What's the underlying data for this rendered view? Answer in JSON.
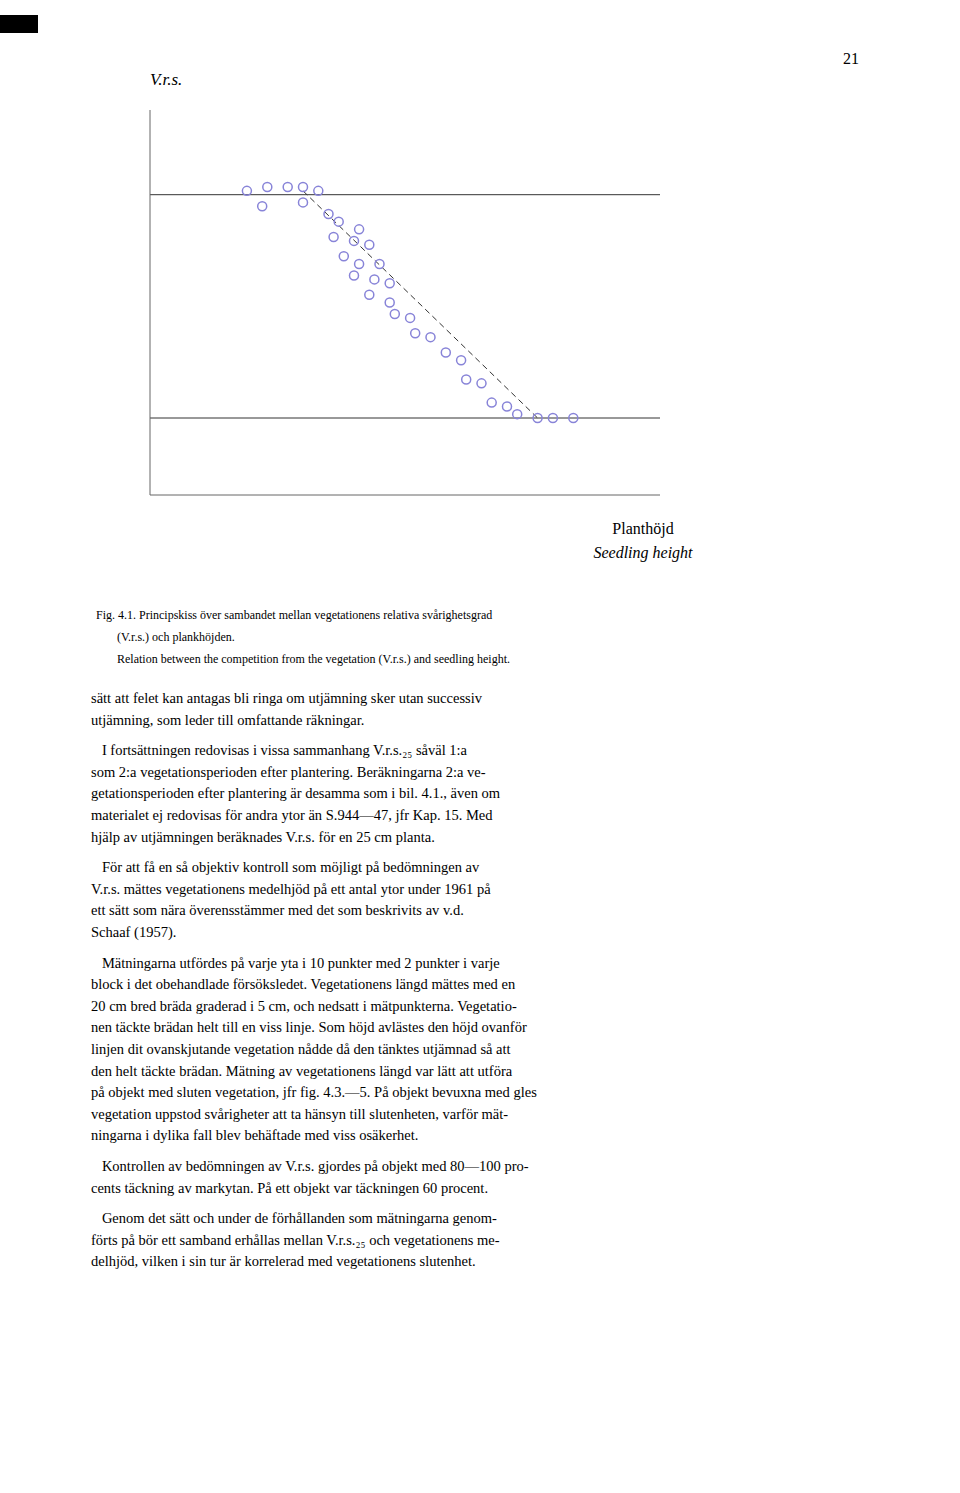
{
  "chart_data": {
    "type": "scatter",
    "ylabel": "V.r.s.",
    "xlabel": [
      "Planthöjd",
      "Seedling height"
    ],
    "x": [
      0.19,
      0.23,
      0.27,
      0.3,
      0.33,
      0.22,
      0.3,
      0.35,
      0.37,
      0.41,
      0.36,
      0.4,
      0.43,
      0.38,
      0.41,
      0.45,
      0.4,
      0.44,
      0.47,
      0.43,
      0.47,
      0.48,
      0.51,
      0.52,
      0.55,
      0.58,
      0.61,
      0.62,
      0.65,
      0.67,
      0.7,
      0.72,
      0.76,
      0.79,
      0.83
    ],
    "values": [
      0.79,
      0.8,
      0.8,
      0.8,
      0.79,
      0.75,
      0.76,
      0.73,
      0.71,
      0.69,
      0.67,
      0.66,
      0.65,
      0.62,
      0.6,
      0.6,
      0.57,
      0.56,
      0.55,
      0.52,
      0.5,
      0.47,
      0.46,
      0.42,
      0.41,
      0.37,
      0.35,
      0.3,
      0.29,
      0.24,
      0.23,
      0.21,
      0.2,
      0.2,
      0.2
    ],
    "xlim": [
      0.0,
      1.0
    ],
    "ylim": [
      0.0,
      1.0
    ],
    "xticks": [],
    "yticks": [],
    "tick_labels": false,
    "grid": false,
    "trend_line": {
      "x": [
        0.3,
        0.76
      ],
      "values": [
        0.79,
        0.2
      ],
      "line_style": "dashed"
    },
    "reference_lines": [
      0.78,
      0.2
    ],
    "annotations": [
      "21"
    ],
    "caption": [
      "Fig. 4.1. Principskiss över sambandet mellan vegetationens relativa svårighetsgrad",
      "       (V.r.s.) och plankhöjden.",
      "       Relation between the competition from the vegetation (V.r.s.) and seedling height."
    ],
    "body": [
      [
        "sätt att felet kan antagas bli ringa om utjämning sker utan successiv",
        "utjämning, som leder till omfattande räkningar."
      ],
      [
        "   I fortsättningen redovisas i vissa sammanhang V.r.s.₂₅ såväl 1:a",
        "som 2:a vegetationsperioden efter plantering. Beräkningarna 2:a ve-",
        "getationsperioden efter plantering är desamma som i bil. 4.1., även om",
        "materialet ej redovisas för andra ytor än S.944—47, jfr Kap. 15. Med",
        "hjälp av utjämningen beräknades V.r.s. för en 25 cm planta."
      ],
      [
        "   För att få en så objektiv kontroll som möjligt på bedömningen av",
        "V.r.s. mättes vegetationens medelhjöd på ett antal ytor under 1961 på",
        "ett sätt som nära överensstämmer med det som beskrivits av v.d.",
        "Schaaf (1957)."
      ],
      [
        "   Mätningarna utfördes på varje yta i 10 punkter med 2 punkter i varje",
        "block i det obehandlade försöksledet. Vegetationens längd mättes med en",
        "20 cm bred bräda graderad i 5 cm, och nedsatt i mätpunkterna. Vegetatio-",
        "nen täckte brädan helt till en viss linje. Som höjd avlästes den höjd ovanför",
        "linjen dit ovanskjutande vegetation nådde då den tänktes utjämnad så att",
        "den helt täckte brädan. Mätning av vegetationens längd var lätt att utföra",
        "på objekt med sluten vegetation, jfr fig. 4.3.—5. På objekt bevuxna med gles",
        "vegetation uppstod svårigheter att ta hänsyn till slutenheten, varför mät-",
        "ningarna i dylika fall blev behäftade med viss osäkerhet."
      ],
      [
        "   Kontrollen av bedömningen av V.r.s. gjordes på objekt med 80—100 pro-",
        "cents täckning av markytan. På ett objekt var täckningen 60 procent."
      ],
      [
        "   Genom det sätt och under de förhållanden som mätningarna genom-",
        "förts på bör ett samband erhållas mellan V.r.s.₂₅ och vegetationens me-",
        "delhjöd, vilken i sin tur är korrelerad med vegetationens slutenhet."
      ]
    ]
  }
}
